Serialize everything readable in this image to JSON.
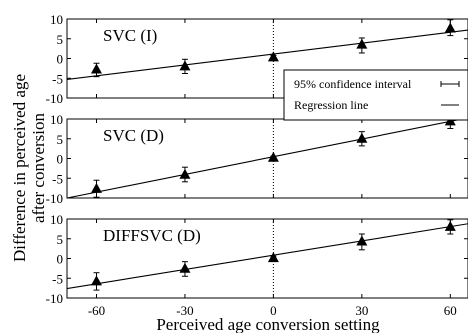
{
  "figure": {
    "ylabel_line1": "Difference in perceived age",
    "ylabel_line2": "after conversion",
    "xlabel": "Perceived age conversion setting",
    "legend": {
      "ci_label": "95% confidence interval",
      "regression_label": "Regression line"
    }
  },
  "chart_data": [
    {
      "type": "scatter",
      "panel_label": "SVC (I)",
      "x": [
        -60,
        -30,
        0,
        30,
        60
      ],
      "y": [
        -2.8,
        -2.0,
        0.3,
        3.5,
        7.6
      ],
      "ci_low": [
        -4.6,
        -3.8,
        -0.4,
        1.4,
        5.8
      ],
      "ci_high": [
        -1.2,
        -0.2,
        0.8,
        5.2,
        9.8
      ],
      "regression": {
        "x": [
          -70,
          66
        ],
        "y": [
          -5.3,
          7.2
        ]
      },
      "xlim": [
        -70,
        66
      ],
      "ylim": [
        -10,
        10
      ],
      "xticks": [
        -60,
        -30,
        0,
        30,
        60
      ],
      "yticks": [
        -10,
        -5,
        0,
        5,
        10
      ]
    },
    {
      "type": "scatter",
      "panel_label": "SVC (D)",
      "x": [
        -60,
        -30,
        0,
        30,
        60
      ],
      "y": [
        -7.7,
        -4.1,
        0.2,
        5.0,
        9.4
      ],
      "ci_low": [
        -9.8,
        -5.9,
        -0.2,
        3.2,
        7.6
      ],
      "ci_high": [
        -5.5,
        -2.2,
        0.6,
        6.8,
        11.2
      ],
      "regression": {
        "x": [
          -70,
          66
        ],
        "y": [
          -10.0,
          10.3
        ]
      },
      "xlim": [
        -70,
        66
      ],
      "ylim": [
        -10,
        10
      ],
      "xticks": [
        -60,
        -30,
        0,
        30,
        60
      ],
      "yticks": [
        -10,
        -5,
        0,
        5,
        10
      ]
    },
    {
      "type": "scatter",
      "panel_label": "DIFFSVC (D)",
      "x": [
        -60,
        -30,
        0,
        30,
        60
      ],
      "y": [
        -5.8,
        -2.6,
        0.1,
        4.3,
        8.0
      ],
      "ci_low": [
        -8.0,
        -4.5,
        -0.3,
        2.2,
        6.2
      ],
      "ci_high": [
        -3.6,
        -0.8,
        0.6,
        6.2,
        9.8
      ],
      "regression": {
        "x": [
          -70,
          66
        ],
        "y": [
          -7.6,
          8.8
        ]
      },
      "xlim": [
        -70,
        66
      ],
      "ylim": [
        -10,
        10
      ],
      "xticks": [
        -60,
        -30,
        0,
        30,
        60
      ],
      "yticks": [
        -10,
        -5,
        0,
        5,
        10
      ]
    }
  ]
}
